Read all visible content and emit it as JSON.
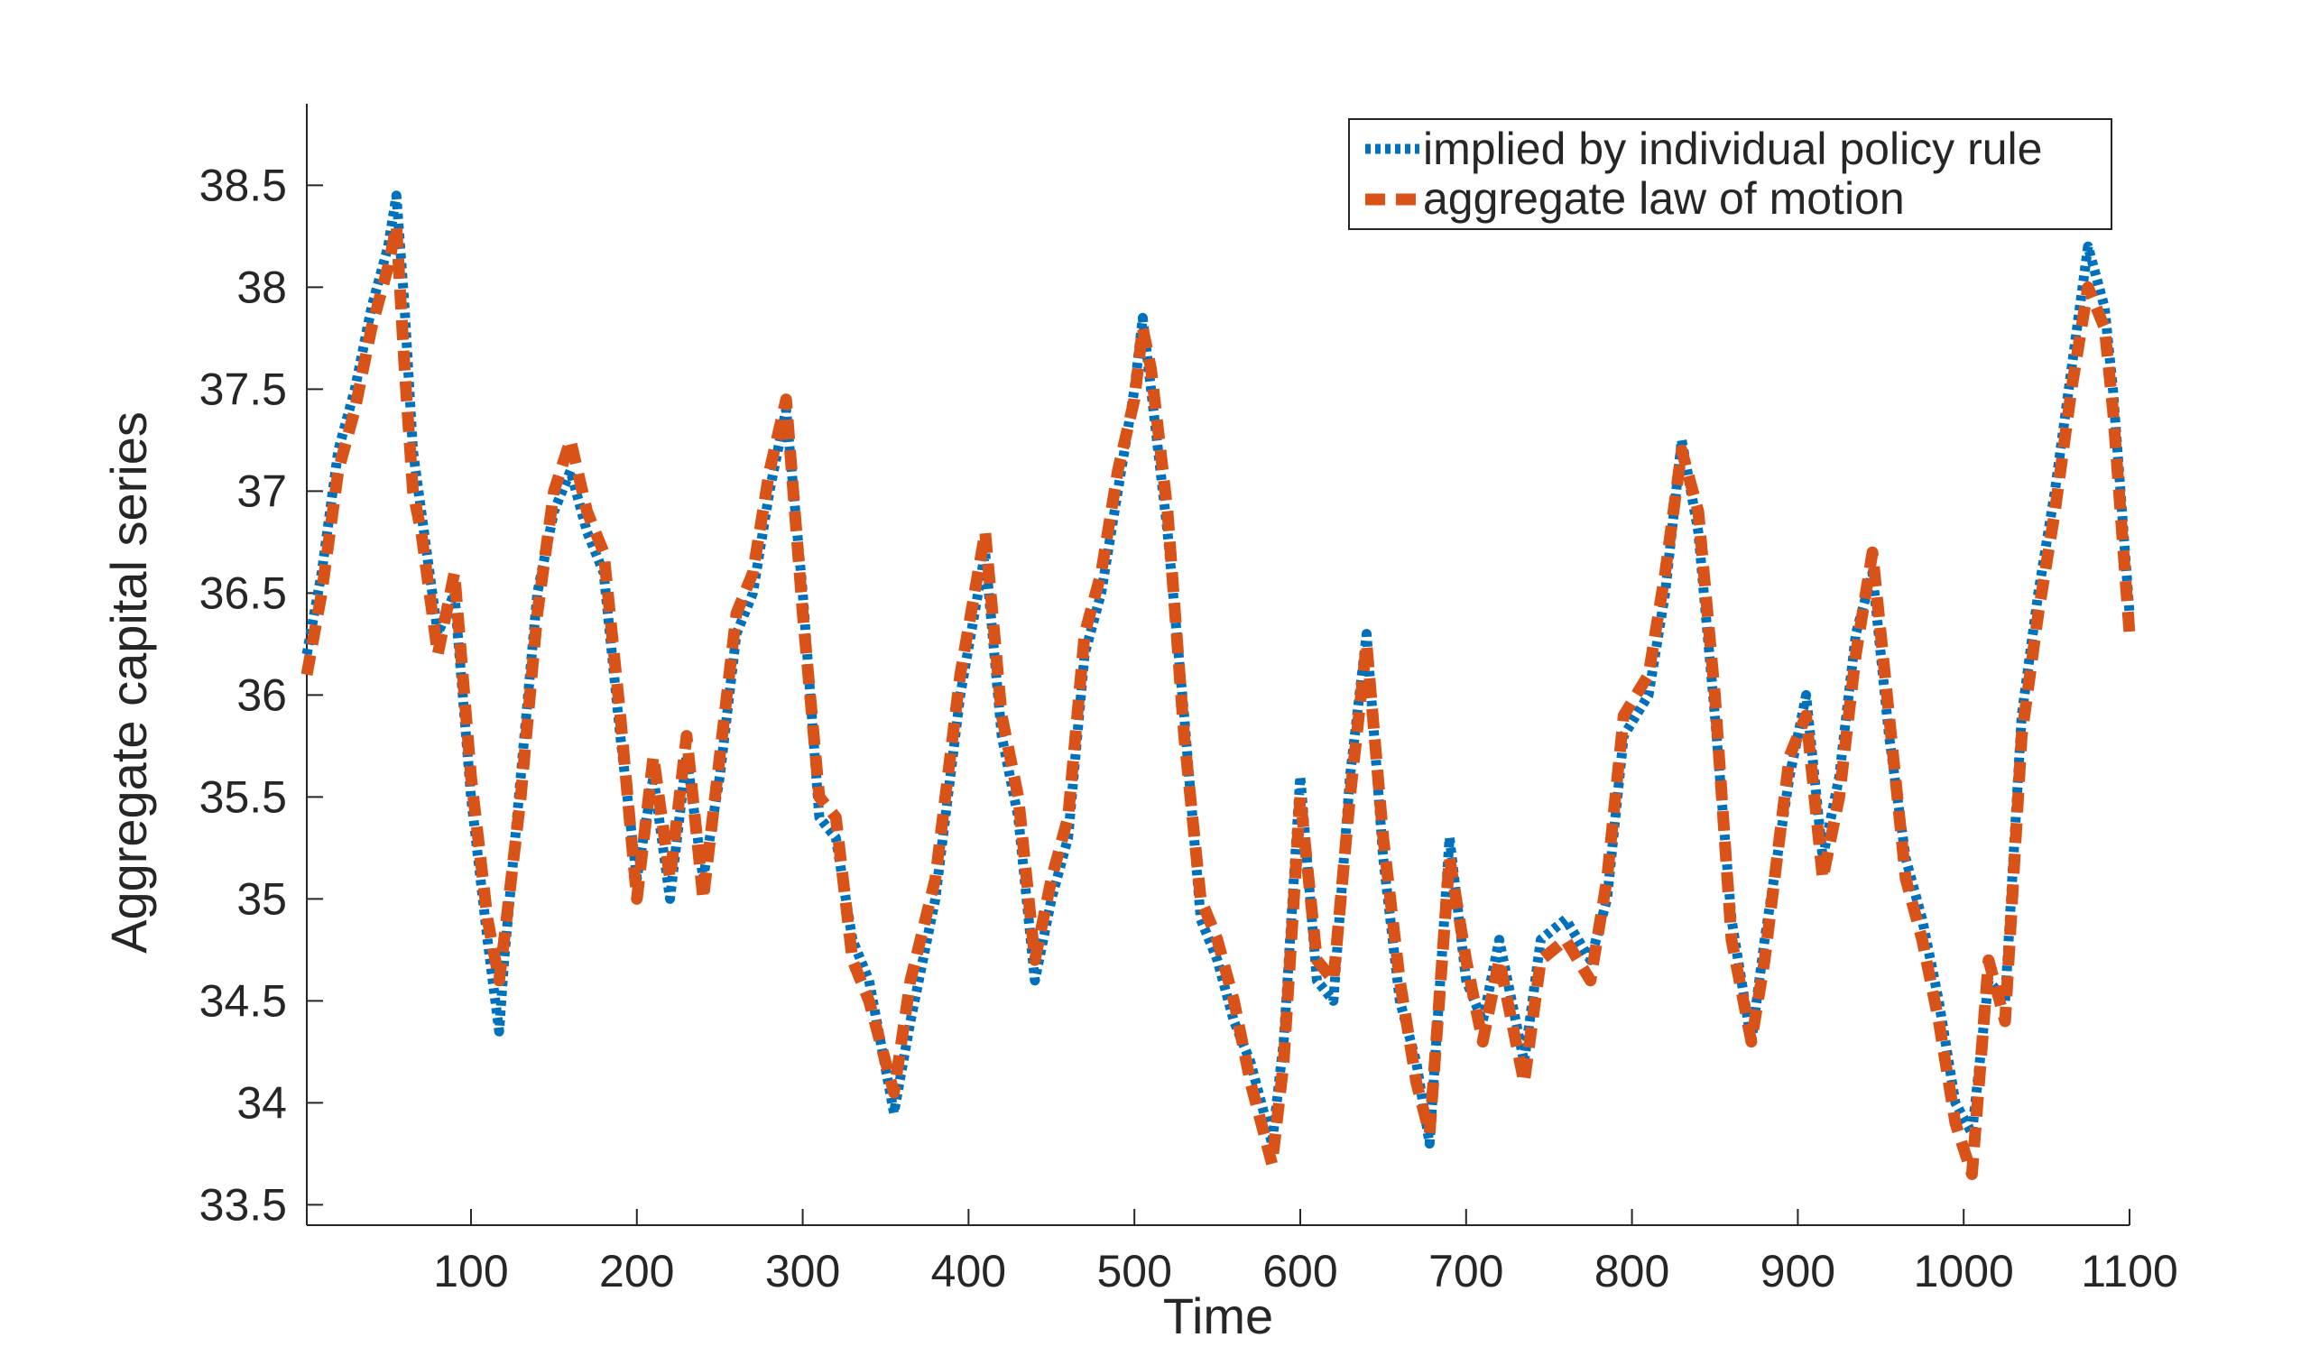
{
  "chart_data": {
    "type": "line",
    "title": "",
    "xlabel": "Time",
    "ylabel": "Aggregate capital series",
    "xlim": [
      1,
      1100
    ],
    "ylim": [
      33.4,
      38.9
    ],
    "xticks": [
      100,
      200,
      300,
      400,
      500,
      600,
      700,
      800,
      900,
      1000,
      1100
    ],
    "yticks": [
      33.5,
      34,
      34.5,
      35,
      35.5,
      36,
      36.5,
      37,
      37.5,
      38,
      38.5
    ],
    "ytick_labels": [
      "33.5",
      "34",
      "34.5",
      "35",
      "35.5",
      "36",
      "36.5",
      "37",
      "37.5",
      "38",
      "38.5"
    ],
    "grid": false,
    "legend_position": "top-right",
    "colors": {
      "series1": "#0072BD",
      "series2": "#D95319",
      "axis": "#262626"
    },
    "series": [
      {
        "name": "implied by individual policy rule",
        "style": "dotted",
        "x": [
          1,
          10,
          20,
          30,
          40,
          50,
          55,
          60,
          65,
          70,
          80,
          90,
          100,
          110,
          117,
          120,
          130,
          140,
          150,
          160,
          170,
          180,
          190,
          200,
          210,
          220,
          230,
          240,
          250,
          260,
          270,
          280,
          290,
          300,
          310,
          320,
          330,
          340,
          355,
          365,
          380,
          395,
          410,
          420,
          430,
          440,
          450,
          460,
          470,
          480,
          490,
          500,
          505,
          510,
          520,
          530,
          540,
          550,
          560,
          570,
          583,
          590,
          600,
          610,
          620,
          630,
          640,
          650,
          660,
          670,
          678,
          690,
          700,
          710,
          720,
          735,
          745,
          760,
          775,
          785,
          795,
          810,
          820,
          830,
          840,
          850,
          860,
          872,
          880,
          895,
          905,
          915,
          925,
          935,
          945,
          955,
          965,
          975,
          985,
          995,
          1005,
          1015,
          1025,
          1035,
          1045,
          1055,
          1065,
          1075,
          1085,
          1090,
          1100
        ],
        "y": [
          36.2,
          36.6,
          37.2,
          37.5,
          37.9,
          38.2,
          38.45,
          37.9,
          37.2,
          36.9,
          36.3,
          36.5,
          35.5,
          34.8,
          34.35,
          34.7,
          35.6,
          36.5,
          36.9,
          37.1,
          36.8,
          36.6,
          35.8,
          35.1,
          35.6,
          35.0,
          35.7,
          35.1,
          35.6,
          36.3,
          36.5,
          37.0,
          37.4,
          36.5,
          35.4,
          35.3,
          34.8,
          34.6,
          33.95,
          34.4,
          35.0,
          36.0,
          36.7,
          35.8,
          35.4,
          34.6,
          35.0,
          35.3,
          36.2,
          36.5,
          37.0,
          37.5,
          37.85,
          37.5,
          36.8,
          35.9,
          34.9,
          34.7,
          34.4,
          34.2,
          33.8,
          34.3,
          35.6,
          34.6,
          34.5,
          35.6,
          36.3,
          35.2,
          34.5,
          34.2,
          33.8,
          35.3,
          34.6,
          34.4,
          34.8,
          34.2,
          34.8,
          34.9,
          34.7,
          35.0,
          35.8,
          36.0,
          36.5,
          37.25,
          36.8,
          35.9,
          34.9,
          34.3,
          34.8,
          35.6,
          36.0,
          35.2,
          35.6,
          36.3,
          36.6,
          35.8,
          35.2,
          34.9,
          34.5,
          34.0,
          33.85,
          34.6,
          34.5,
          35.9,
          36.5,
          37.0,
          37.6,
          38.2,
          37.9,
          37.5,
          36.4
        ]
      },
      {
        "name": "aggregate law of motion",
        "style": "dashed",
        "x": [
          1,
          10,
          20,
          30,
          40,
          50,
          55,
          60,
          65,
          70,
          80,
          90,
          100,
          110,
          117,
          120,
          130,
          140,
          150,
          160,
          170,
          180,
          190,
          200,
          210,
          220,
          230,
          240,
          250,
          260,
          270,
          280,
          290,
          300,
          310,
          320,
          330,
          340,
          355,
          365,
          380,
          395,
          410,
          420,
          430,
          440,
          450,
          460,
          470,
          480,
          490,
          500,
          505,
          510,
          520,
          530,
          540,
          550,
          560,
          570,
          583,
          590,
          600,
          610,
          620,
          630,
          640,
          650,
          660,
          670,
          678,
          690,
          700,
          710,
          720,
          735,
          745,
          760,
          775,
          785,
          795,
          810,
          820,
          830,
          840,
          850,
          860,
          872,
          880,
          895,
          905,
          915,
          925,
          935,
          945,
          955,
          965,
          975,
          985,
          995,
          1005,
          1015,
          1025,
          1035,
          1045,
          1055,
          1065,
          1075,
          1085,
          1090,
          1100
        ],
        "y": [
          36.1,
          36.5,
          37.1,
          37.4,
          37.8,
          38.1,
          38.3,
          37.6,
          37.0,
          36.8,
          36.2,
          36.6,
          35.6,
          34.9,
          34.6,
          34.8,
          35.5,
          36.4,
          37.0,
          37.25,
          36.9,
          36.7,
          35.9,
          35.0,
          35.7,
          35.1,
          35.8,
          35.0,
          35.7,
          36.4,
          36.6,
          37.1,
          37.45,
          36.4,
          35.5,
          35.4,
          34.7,
          34.5,
          34.05,
          34.6,
          35.1,
          36.1,
          36.8,
          35.9,
          35.5,
          34.7,
          35.1,
          35.4,
          36.3,
          36.6,
          37.1,
          37.45,
          37.8,
          37.6,
          36.9,
          35.8,
          35.0,
          34.8,
          34.5,
          34.1,
          33.7,
          34.2,
          35.5,
          34.7,
          34.6,
          35.5,
          36.25,
          35.3,
          34.6,
          34.1,
          33.85,
          35.2,
          34.7,
          34.3,
          34.7,
          34.1,
          34.7,
          34.8,
          34.6,
          35.1,
          35.9,
          36.1,
          36.6,
          37.2,
          36.9,
          36.0,
          34.8,
          34.3,
          34.7,
          35.7,
          35.9,
          35.1,
          35.5,
          36.2,
          36.7,
          35.9,
          35.1,
          34.8,
          34.4,
          33.9,
          33.65,
          34.7,
          34.4,
          35.8,
          36.4,
          36.9,
          37.5,
          38.0,
          37.8,
          37.4,
          36.3
        ]
      }
    ]
  }
}
